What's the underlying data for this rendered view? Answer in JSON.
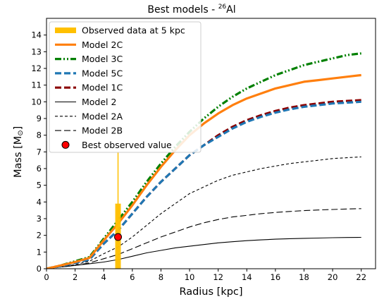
{
  "chart_data": {
    "type": "line",
    "title": "Best models - ",
    "title_sup": "26",
    "title_tail": "Al",
    "xlabel": "Radius [kpc]",
    "ylabel_main": "Mass [M",
    "ylabel_symbol": "⊙",
    "ylabel_close": "]",
    "xlim": [
      0,
      23
    ],
    "ylim": [
      0,
      15
    ],
    "xticks": [
      0,
      2,
      4,
      6,
      8,
      10,
      12,
      14,
      16,
      18,
      20,
      22
    ],
    "yticks": [
      0,
      1,
      2,
      3,
      4,
      5,
      6,
      7,
      8,
      9,
      10,
      11,
      12,
      13,
      14
    ],
    "grid": false,
    "legend_position": "upper-left",
    "x": [
      0,
      1,
      2,
      3,
      4,
      5,
      6,
      7,
      8,
      9,
      10,
      11,
      12,
      13,
      14,
      15,
      16,
      17,
      18,
      19,
      20,
      21,
      22
    ],
    "series": [
      {
        "name": "Model 2C",
        "color": "#ff7f0e",
        "style": "solid-thick",
        "values": [
          0,
          0.2,
          0.4,
          0.65,
          1.7,
          2.7,
          3.8,
          5.0,
          6.1,
          7.1,
          8.0,
          8.7,
          9.3,
          9.8,
          10.2,
          10.5,
          10.8,
          11.0,
          11.2,
          11.3,
          11.4,
          11.5,
          11.6
        ]
      },
      {
        "name": "Model 3C",
        "color": "#008000",
        "style": "dashdot-thick",
        "values": [
          0,
          0.2,
          0.45,
          0.7,
          1.8,
          2.9,
          4.0,
          5.2,
          6.3,
          7.3,
          8.2,
          9.0,
          9.7,
          10.3,
          10.8,
          11.2,
          11.6,
          11.9,
          12.2,
          12.4,
          12.6,
          12.8,
          12.9
        ]
      },
      {
        "name": "Model 5C",
        "color": "#1f77b4",
        "style": "dashed-thick",
        "values": [
          0,
          0.15,
          0.35,
          0.55,
          1.5,
          2.3,
          3.3,
          4.3,
          5.2,
          6.0,
          6.8,
          7.4,
          7.9,
          8.4,
          8.8,
          9.1,
          9.35,
          9.55,
          9.7,
          9.8,
          9.9,
          9.95,
          10.0
        ]
      },
      {
        "name": "Model 1C",
        "color": "#8b0000",
        "style": "dashed-thick",
        "values": [
          0,
          0.15,
          0.35,
          0.55,
          1.5,
          2.3,
          3.3,
          4.3,
          5.2,
          6.0,
          6.8,
          7.4,
          8.0,
          8.5,
          8.9,
          9.2,
          9.45,
          9.65,
          9.8,
          9.9,
          10.0,
          10.05,
          10.1
        ]
      },
      {
        "name": "Model 2",
        "color": "#000000",
        "style": "solid-thin",
        "values": [
          0,
          0.1,
          0.2,
          0.3,
          0.4,
          0.55,
          0.75,
          0.95,
          1.1,
          1.25,
          1.35,
          1.45,
          1.55,
          1.62,
          1.68,
          1.73,
          1.77,
          1.8,
          1.82,
          1.84,
          1.86,
          1.87,
          1.88
        ]
      },
      {
        "name": "Model 2A",
        "color": "#000000",
        "style": "dashed-thin",
        "values": [
          0,
          0.1,
          0.25,
          0.45,
          0.9,
          1.3,
          1.9,
          2.6,
          3.3,
          3.9,
          4.5,
          4.9,
          5.3,
          5.6,
          5.8,
          6.0,
          6.15,
          6.3,
          6.4,
          6.5,
          6.6,
          6.65,
          6.7
        ]
      },
      {
        "name": "Model 2B",
        "color": "#000000",
        "style": "longdash-thin",
        "values": [
          0,
          0.1,
          0.2,
          0.35,
          0.6,
          0.85,
          1.2,
          1.55,
          1.9,
          2.2,
          2.5,
          2.75,
          2.95,
          3.1,
          3.2,
          3.3,
          3.37,
          3.43,
          3.48,
          3.52,
          3.55,
          3.58,
          3.6
        ]
      }
    ],
    "observed_band": {
      "name": "Observed data at 5 kpc",
      "x": 5,
      "low_box": 0,
      "high_box": 3.9,
      "whisker_low": 0,
      "whisker_high": 7.0,
      "color": "#ffc000"
    },
    "best_point": {
      "name": "Best observed value",
      "x": 5,
      "y": 1.9,
      "color": "#ff0000"
    }
  }
}
